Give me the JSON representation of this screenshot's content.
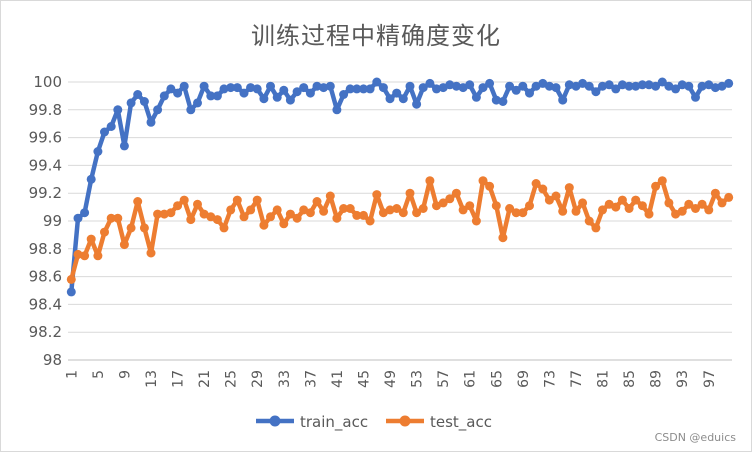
{
  "chart_data": {
    "type": "line",
    "title": "训练过程中精确度变化",
    "xlabel": "",
    "ylabel": "",
    "x": [
      1,
      2,
      3,
      4,
      5,
      6,
      7,
      8,
      9,
      10,
      11,
      12,
      13,
      14,
      15,
      16,
      17,
      18,
      19,
      20,
      21,
      22,
      23,
      24,
      25,
      26,
      27,
      28,
      29,
      30,
      31,
      32,
      33,
      34,
      35,
      36,
      37,
      38,
      39,
      40,
      41,
      42,
      43,
      44,
      45,
      46,
      47,
      48,
      49,
      50,
      51,
      52,
      53,
      54,
      55,
      56,
      57,
      58,
      59,
      60,
      61,
      62,
      63,
      64,
      65,
      66,
      67,
      68,
      69,
      70,
      71,
      72,
      73,
      74,
      75,
      76,
      77,
      78,
      79,
      80,
      81,
      82,
      83,
      84,
      85,
      86,
      87,
      88,
      89,
      90,
      91,
      92,
      93,
      94,
      95,
      96,
      97,
      98,
      99,
      100
    ],
    "xtick_labels": [
      "1",
      "5",
      "9",
      "13",
      "17",
      "21",
      "25",
      "29",
      "33",
      "37",
      "41",
      "45",
      "49",
      "53",
      "57",
      "61",
      "65",
      "69",
      "73",
      "77",
      "81",
      "85",
      "89",
      "93",
      "97"
    ],
    "ylim": [
      98,
      100
    ],
    "yticks": [
      "98",
      "98.2",
      "98.4",
      "98.6",
      "98.8",
      "99",
      "99.2",
      "99.4",
      "99.6",
      "99.8",
      "100"
    ],
    "grid": true,
    "legend_position": "bottom",
    "series": [
      {
        "name": "train_acc",
        "color": "#4472C4",
        "values": [
          98.49,
          99.02,
          99.06,
          99.3,
          99.5,
          99.64,
          99.68,
          99.8,
          99.54,
          99.85,
          99.91,
          99.86,
          99.71,
          99.8,
          99.9,
          99.95,
          99.92,
          99.97,
          99.8,
          99.85,
          99.97,
          99.9,
          99.9,
          99.95,
          99.96,
          99.96,
          99.92,
          99.96,
          99.95,
          99.88,
          99.97,
          99.89,
          99.94,
          99.87,
          99.93,
          99.96,
          99.92,
          99.97,
          99.96,
          99.97,
          99.8,
          99.91,
          99.95,
          99.95,
          99.95,
          99.95,
          100.0,
          99.96,
          99.88,
          99.92,
          99.88,
          99.97,
          99.84,
          99.96,
          99.99,
          99.95,
          99.96,
          99.98,
          99.97,
          99.96,
          99.98,
          99.89,
          99.96,
          99.99,
          99.87,
          99.86,
          99.97,
          99.94,
          99.97,
          99.92,
          99.97,
          99.99,
          99.97,
          99.96,
          99.87,
          99.98,
          99.97,
          99.99,
          99.97,
          99.93,
          99.97,
          99.98,
          99.95,
          99.98,
          99.97,
          99.97,
          99.98,
          99.98,
          99.97,
          100.0,
          99.97,
          99.95,
          99.98,
          99.97,
          99.89,
          99.97,
          99.98,
          99.96,
          99.97,
          99.99
        ]
      },
      {
        "name": "test_acc",
        "color": "#ED7D31",
        "values": [
          98.58,
          98.76,
          98.75,
          98.87,
          98.75,
          98.92,
          99.02,
          99.02,
          98.83,
          98.95,
          99.14,
          98.95,
          98.77,
          99.05,
          99.05,
          99.06,
          99.11,
          99.15,
          99.01,
          99.12,
          99.05,
          99.03,
          99.01,
          98.95,
          99.08,
          99.15,
          99.03,
          99.08,
          99.15,
          98.97,
          99.03,
          99.08,
          98.98,
          99.05,
          99.02,
          99.08,
          99.06,
          99.14,
          99.07,
          99.18,
          99.02,
          99.09,
          99.09,
          99.04,
          99.04,
          99.0,
          99.19,
          99.06,
          99.08,
          99.09,
          99.06,
          99.2,
          99.06,
          99.09,
          99.29,
          99.11,
          99.13,
          99.16,
          99.2,
          99.08,
          99.11,
          99.0,
          99.29,
          99.25,
          99.11,
          98.88,
          99.09,
          99.06,
          99.06,
          99.11,
          99.27,
          99.23,
          99.15,
          99.18,
          99.07,
          99.24,
          99.07,
          99.13,
          99.0,
          98.95,
          99.08,
          99.12,
          99.1,
          99.15,
          99.09,
          99.15,
          99.11,
          99.05,
          99.25,
          99.29,
          99.13,
          99.05,
          99.07,
          99.12,
          99.09,
          99.12,
          99.08,
          99.2,
          99.13,
          99.17
        ]
      }
    ]
  },
  "watermark": "CSDN @eduics"
}
